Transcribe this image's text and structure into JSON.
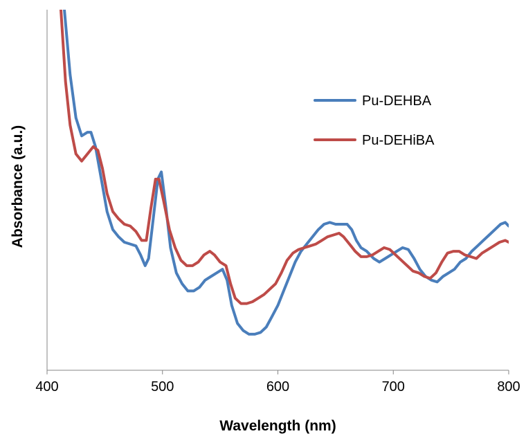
{
  "chart_data": {
    "type": "line",
    "title": "",
    "xlabel": "Wavelength (nm)",
    "ylabel": "Absorbance (a.u.)",
    "xlim": [
      400,
      800
    ],
    "ylim": [
      0,
      1
    ],
    "x_ticks": [
      400,
      500,
      600,
      700,
      800
    ],
    "x_tick_labels": [
      "400",
      "500",
      "600",
      "700",
      "800"
    ],
    "y_ticks_shown": false,
    "grid": false,
    "legend_position": "top-right",
    "series": [
      {
        "name": "Pu-DEHBA",
        "color": "#4a7ebb",
        "points": [
          [
            415,
            1.0
          ],
          [
            420,
            0.82
          ],
          [
            425,
            0.7
          ],
          [
            430,
            0.65
          ],
          [
            435,
            0.66
          ],
          [
            438,
            0.66
          ],
          [
            442,
            0.62
          ],
          [
            447,
            0.53
          ],
          [
            452,
            0.44
          ],
          [
            457,
            0.39
          ],
          [
            462,
            0.37
          ],
          [
            467,
            0.355
          ],
          [
            472,
            0.35
          ],
          [
            477,
            0.345
          ],
          [
            481,
            0.32
          ],
          [
            485,
            0.29
          ],
          [
            488,
            0.31
          ],
          [
            492,
            0.42
          ],
          [
            496,
            0.53
          ],
          [
            499,
            0.55
          ],
          [
            503,
            0.45
          ],
          [
            507,
            0.34
          ],
          [
            512,
            0.27
          ],
          [
            517,
            0.24
          ],
          [
            522,
            0.22
          ],
          [
            527,
            0.22
          ],
          [
            532,
            0.23
          ],
          [
            537,
            0.25
          ],
          [
            542,
            0.26
          ],
          [
            547,
            0.27
          ],
          [
            552,
            0.28
          ],
          [
            556,
            0.25
          ],
          [
            560,
            0.18
          ],
          [
            565,
            0.13
          ],
          [
            570,
            0.11
          ],
          [
            575,
            0.1
          ],
          [
            580,
            0.1
          ],
          [
            585,
            0.105
          ],
          [
            590,
            0.12
          ],
          [
            595,
            0.15
          ],
          [
            600,
            0.18
          ],
          [
            605,
            0.22
          ],
          [
            610,
            0.26
          ],
          [
            615,
            0.3
          ],
          [
            620,
            0.33
          ],
          [
            625,
            0.35
          ],
          [
            630,
            0.37
          ],
          [
            635,
            0.39
          ],
          [
            640,
            0.405
          ],
          [
            645,
            0.41
          ],
          [
            650,
            0.405
          ],
          [
            655,
            0.405
          ],
          [
            660,
            0.405
          ],
          [
            664,
            0.39
          ],
          [
            668,
            0.36
          ],
          [
            672,
            0.34
          ],
          [
            677,
            0.33
          ],
          [
            683,
            0.31
          ],
          [
            688,
            0.3
          ],
          [
            693,
            0.31
          ],
          [
            698,
            0.32
          ],
          [
            703,
            0.33
          ],
          [
            708,
            0.34
          ],
          [
            713,
            0.335
          ],
          [
            718,
            0.31
          ],
          [
            723,
            0.28
          ],
          [
            728,
            0.26
          ],
          [
            733,
            0.25
          ],
          [
            738,
            0.245
          ],
          [
            743,
            0.26
          ],
          [
            748,
            0.27
          ],
          [
            753,
            0.28
          ],
          [
            758,
            0.3
          ],
          [
            763,
            0.31
          ],
          [
            768,
            0.33
          ],
          [
            773,
            0.345
          ],
          [
            778,
            0.36
          ],
          [
            783,
            0.375
          ],
          [
            788,
            0.39
          ],
          [
            793,
            0.405
          ],
          [
            797,
            0.41
          ],
          [
            800,
            0.4
          ]
        ]
      },
      {
        "name": "Pu-DEHiBA",
        "color": "#be4b48",
        "points": [
          [
            412,
            1.0
          ],
          [
            416,
            0.8
          ],
          [
            420,
            0.68
          ],
          [
            425,
            0.6
          ],
          [
            430,
            0.58
          ],
          [
            435,
            0.6
          ],
          [
            440,
            0.62
          ],
          [
            444,
            0.61
          ],
          [
            448,
            0.56
          ],
          [
            452,
            0.49
          ],
          [
            457,
            0.44
          ],
          [
            462,
            0.42
          ],
          [
            467,
            0.405
          ],
          [
            472,
            0.4
          ],
          [
            477,
            0.385
          ],
          [
            482,
            0.36
          ],
          [
            486,
            0.36
          ],
          [
            490,
            0.45
          ],
          [
            494,
            0.53
          ],
          [
            497,
            0.53
          ],
          [
            501,
            0.47
          ],
          [
            506,
            0.39
          ],
          [
            511,
            0.34
          ],
          [
            516,
            0.305
          ],
          [
            521,
            0.29
          ],
          [
            526,
            0.29
          ],
          [
            531,
            0.3
          ],
          [
            536,
            0.32
          ],
          [
            541,
            0.33
          ],
          [
            545,
            0.32
          ],
          [
            550,
            0.3
          ],
          [
            555,
            0.29
          ],
          [
            559,
            0.24
          ],
          [
            563,
            0.2
          ],
          [
            568,
            0.185
          ],
          [
            573,
            0.185
          ],
          [
            578,
            0.19
          ],
          [
            583,
            0.2
          ],
          [
            588,
            0.21
          ],
          [
            593,
            0.225
          ],
          [
            598,
            0.24
          ],
          [
            603,
            0.27
          ],
          [
            608,
            0.305
          ],
          [
            613,
            0.325
          ],
          [
            618,
            0.335
          ],
          [
            623,
            0.34
          ],
          [
            628,
            0.345
          ],
          [
            633,
            0.35
          ],
          [
            638,
            0.36
          ],
          [
            643,
            0.37
          ],
          [
            648,
            0.375
          ],
          [
            653,
            0.38
          ],
          [
            657,
            0.37
          ],
          [
            662,
            0.35
          ],
          [
            667,
            0.33
          ],
          [
            672,
            0.315
          ],
          [
            677,
            0.315
          ],
          [
            682,
            0.32
          ],
          [
            687,
            0.33
          ],
          [
            692,
            0.34
          ],
          [
            697,
            0.335
          ],
          [
            702,
            0.32
          ],
          [
            707,
            0.305
          ],
          [
            712,
            0.29
          ],
          [
            717,
            0.275
          ],
          [
            722,
            0.27
          ],
          [
            727,
            0.26
          ],
          [
            732,
            0.255
          ],
          [
            737,
            0.27
          ],
          [
            742,
            0.3
          ],
          [
            747,
            0.325
          ],
          [
            752,
            0.33
          ],
          [
            757,
            0.33
          ],
          [
            762,
            0.32
          ],
          [
            767,
            0.315
          ],
          [
            772,
            0.31
          ],
          [
            777,
            0.325
          ],
          [
            782,
            0.335
          ],
          [
            787,
            0.345
          ],
          [
            792,
            0.355
          ],
          [
            797,
            0.36
          ],
          [
            800,
            0.355
          ]
        ]
      }
    ]
  }
}
